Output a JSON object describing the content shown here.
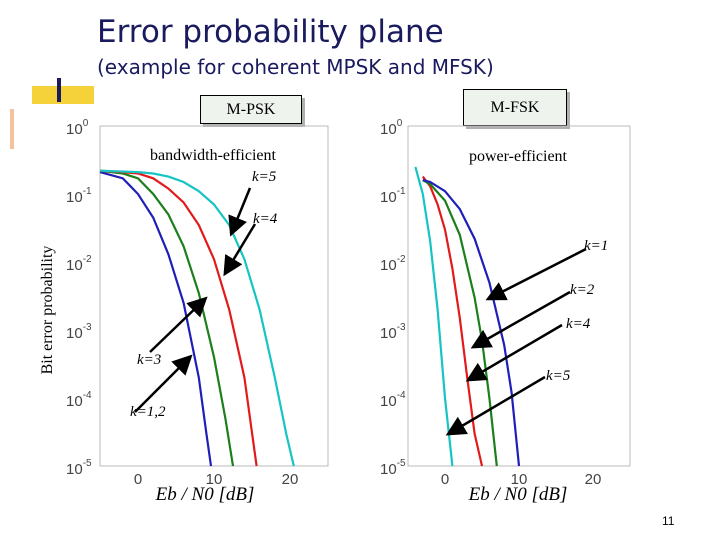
{
  "slide": {
    "title": "Error probability plane",
    "subtitle": "(example for coherent MPSK and MFSK)",
    "page_number": "11",
    "y_axis_label": "Bit error probability"
  },
  "chart_data": [
    {
      "type": "line",
      "label_box": "M-PSK",
      "caption": "bandwidth-efficient",
      "xlabel": "Eb / N0 [dB]",
      "xlim": [
        -5,
        25
      ],
      "ylim": [
        1e-05,
        1
      ],
      "y_scale": "log",
      "x_ticks": [
        "0",
        "10",
        "20"
      ],
      "y_ticks": [
        "10^0",
        "10^-1",
        "10^-2",
        "10^-3",
        "10^-4",
        "10^-5"
      ],
      "series": [
        {
          "color": "#1f1fb8",
          "x": [
            -5,
            -2,
            0,
            2,
            4,
            6,
            8,
            9,
            9.6
          ],
          "y": [
            0.21,
            0.17,
            0.1,
            0.045,
            0.013,
            0.0025,
            0.0002,
            3e-05,
            1e-05
          ]
        },
        {
          "color": "#1b7f1b",
          "x": [
            -5,
            -2,
            0,
            2,
            4,
            6,
            8,
            10,
            11.5,
            12.5
          ],
          "y": [
            0.22,
            0.2,
            0.17,
            0.1,
            0.05,
            0.017,
            0.0035,
            0.0004,
            5e-05,
            1e-05
          ]
        },
        {
          "color": "#e11b1b",
          "x": [
            -5,
            -2,
            0,
            2,
            4,
            6,
            8,
            10,
            12,
            14,
            15.6
          ],
          "y": [
            0.22,
            0.21,
            0.2,
            0.17,
            0.12,
            0.075,
            0.035,
            0.011,
            0.002,
            0.0002,
            1e-05
          ]
        },
        {
          "color": "#16c4c4",
          "x": [
            -5,
            0,
            2,
            4,
            6,
            8,
            10,
            12,
            14,
            16,
            18,
            19.5,
            20.5
          ],
          "y": [
            0.22,
            0.21,
            0.2,
            0.18,
            0.15,
            0.11,
            0.07,
            0.035,
            0.011,
            0.002,
            0.0002,
            3e-05,
            1e-05
          ]
        }
      ],
      "annotations": [
        "k=5",
        "k=4",
        "k=3",
        "k=1,2"
      ]
    },
    {
      "type": "line",
      "label_box": "M-FSK",
      "caption": "power-efficient",
      "xlabel": "Eb / N0 [dB]",
      "xlim": [
        -5,
        25
      ],
      "ylim": [
        1e-05,
        1
      ],
      "y_scale": "log",
      "x_ticks": [
        "0",
        "10",
        "20"
      ],
      "y_ticks": [
        "10^0",
        "10^-1",
        "10^-2",
        "10^-3",
        "10^-4",
        "10^-5"
      ],
      "series": [
        {
          "color": "#16c4c4",
          "x": [
            -4,
            -3,
            -2,
            -1,
            0,
            1
          ],
          "y": [
            0.25,
            0.1,
            0.02,
            0.002,
            0.0001,
            1e-05
          ]
        },
        {
          "color": "#e11b1b",
          "x": [
            -3,
            -2,
            -1,
            0,
            1,
            2,
            3,
            4,
            5
          ],
          "y": [
            0.18,
            0.13,
            0.07,
            0.03,
            0.008,
            0.0015,
            0.0002,
            3e-05,
            1e-05
          ]
        },
        {
          "color": "#1b7f1b",
          "x": [
            -3,
            -2,
            0,
            2,
            4,
            5,
            6,
            7
          ],
          "y": [
            0.16,
            0.14,
            0.08,
            0.025,
            0.003,
            0.0007,
            0.0001,
            1e-05
          ]
        },
        {
          "color": "#1f1fb8",
          "x": [
            -3,
            -2,
            0,
            2,
            4,
            6,
            8,
            9,
            10
          ],
          "y": [
            0.16,
            0.15,
            0.11,
            0.06,
            0.022,
            0.005,
            0.0006,
            0.00012,
            1e-05
          ]
        }
      ],
      "annotations": [
        "k=1",
        "k=2",
        "k=4",
        "k=5"
      ]
    }
  ]
}
